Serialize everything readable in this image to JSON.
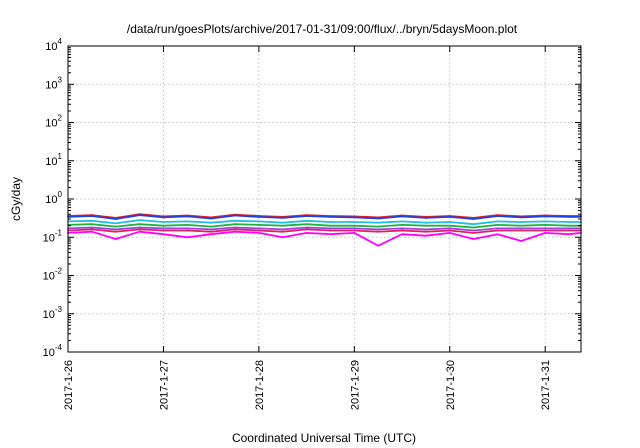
{
  "chart_data": {
    "type": "line",
    "title": "/data/run/goesPlots/archive/2017-01-31/09:00/flux/../bryn/5daysMoon.plot",
    "xlabel": "Coordinated Universal Time (UTC)",
    "ylabel": "cGy/day",
    "yscale": "log",
    "ylim": [
      0.0001,
      10000
    ],
    "xlim": [
      "2017-01-26T00:00",
      "2017-01-31T09:00"
    ],
    "grid": true,
    "x_ticks": [
      {
        "value": "2017-01-26",
        "label": "2017-1-26"
      },
      {
        "value": "2017-01-27",
        "label": "2017-1-27"
      },
      {
        "value": "2017-01-28",
        "label": "2017-1-28"
      },
      {
        "value": "2017-01-29",
        "label": "2017-1-29"
      },
      {
        "value": "2017-01-30",
        "label": "2017-1-30"
      },
      {
        "value": "2017-01-31",
        "label": "2017-1-31"
      }
    ],
    "y_ticks": [
      {
        "value": 0.0001,
        "base": "10",
        "exp": "-4"
      },
      {
        "value": 0.001,
        "base": "10",
        "exp": "-3"
      },
      {
        "value": 0.01,
        "base": "10",
        "exp": "-2"
      },
      {
        "value": 0.1,
        "base": "10",
        "exp": "-1"
      },
      {
        "value": 1,
        "base": "10",
        "exp": "0"
      },
      {
        "value": 10,
        "base": "10",
        "exp": "1"
      },
      {
        "value": 100,
        "base": "10",
        "exp": "2"
      },
      {
        "value": 1000,
        "base": "10",
        "exp": "3"
      },
      {
        "value": 10000,
        "base": "10",
        "exp": "4"
      }
    ],
    "x": [
      "2017-01-26T00:00",
      "2017-01-26T06:00",
      "2017-01-26T12:00",
      "2017-01-26T18:00",
      "2017-01-27T00:00",
      "2017-01-27T06:00",
      "2017-01-27T12:00",
      "2017-01-27T18:00",
      "2017-01-28T00:00",
      "2017-01-28T06:00",
      "2017-01-28T12:00",
      "2017-01-28T18:00",
      "2017-01-29T00:00",
      "2017-01-29T06:00",
      "2017-01-29T12:00",
      "2017-01-29T18:00",
      "2017-01-30T00:00",
      "2017-01-30T06:00",
      "2017-01-30T12:00",
      "2017-01-30T18:00",
      "2017-01-31T00:00",
      "2017-01-31T06:00",
      "2017-01-31T09:00"
    ],
    "series": [
      {
        "color": "#e02020",
        "values": [
          0.36,
          0.38,
          0.32,
          0.4,
          0.35,
          0.37,
          0.33,
          0.39,
          0.36,
          0.34,
          0.38,
          0.36,
          0.35,
          0.33,
          0.37,
          0.34,
          0.36,
          0.32,
          0.38,
          0.35,
          0.37,
          0.36,
          0.36
        ]
      },
      {
        "color": "#2040e0",
        "values": [
          0.34,
          0.36,
          0.3,
          0.38,
          0.33,
          0.35,
          0.31,
          0.37,
          0.34,
          0.32,
          0.36,
          0.34,
          0.33,
          0.31,
          0.35,
          0.32,
          0.34,
          0.3,
          0.36,
          0.33,
          0.35,
          0.34,
          0.34
        ]
      },
      {
        "color": "#20c0e0",
        "values": [
          0.26,
          0.27,
          0.23,
          0.28,
          0.25,
          0.26,
          0.24,
          0.27,
          0.26,
          0.24,
          0.27,
          0.25,
          0.25,
          0.24,
          0.26,
          0.24,
          0.25,
          0.22,
          0.26,
          0.25,
          0.26,
          0.25,
          0.25
        ]
      },
      {
        "color": "#20b040",
        "values": [
          0.21,
          0.22,
          0.19,
          0.22,
          0.2,
          0.21,
          0.19,
          0.22,
          0.21,
          0.2,
          0.22,
          0.2,
          0.2,
          0.19,
          0.21,
          0.2,
          0.2,
          0.18,
          0.21,
          0.2,
          0.21,
          0.2,
          0.2
        ]
      },
      {
        "color": "#a040e0",
        "values": [
          0.17,
          0.18,
          0.16,
          0.18,
          0.17,
          0.17,
          0.16,
          0.18,
          0.17,
          0.16,
          0.18,
          0.17,
          0.17,
          0.16,
          0.17,
          0.16,
          0.17,
          0.15,
          0.17,
          0.17,
          0.17,
          0.17,
          0.17
        ]
      },
      {
        "color": "#e02060",
        "values": [
          0.15,
          0.16,
          0.14,
          0.16,
          0.15,
          0.15,
          0.14,
          0.16,
          0.15,
          0.14,
          0.16,
          0.15,
          0.15,
          0.14,
          0.15,
          0.14,
          0.15,
          0.13,
          0.15,
          0.15,
          0.15,
          0.15,
          0.15
        ]
      },
      {
        "color": "#ff00ff",
        "values": [
          0.13,
          0.14,
          0.09,
          0.14,
          0.12,
          0.1,
          0.12,
          0.14,
          0.13,
          0.1,
          0.13,
          0.12,
          0.13,
          0.06,
          0.12,
          0.11,
          0.13,
          0.09,
          0.12,
          0.08,
          0.13,
          0.12,
          0.13
        ]
      }
    ]
  }
}
